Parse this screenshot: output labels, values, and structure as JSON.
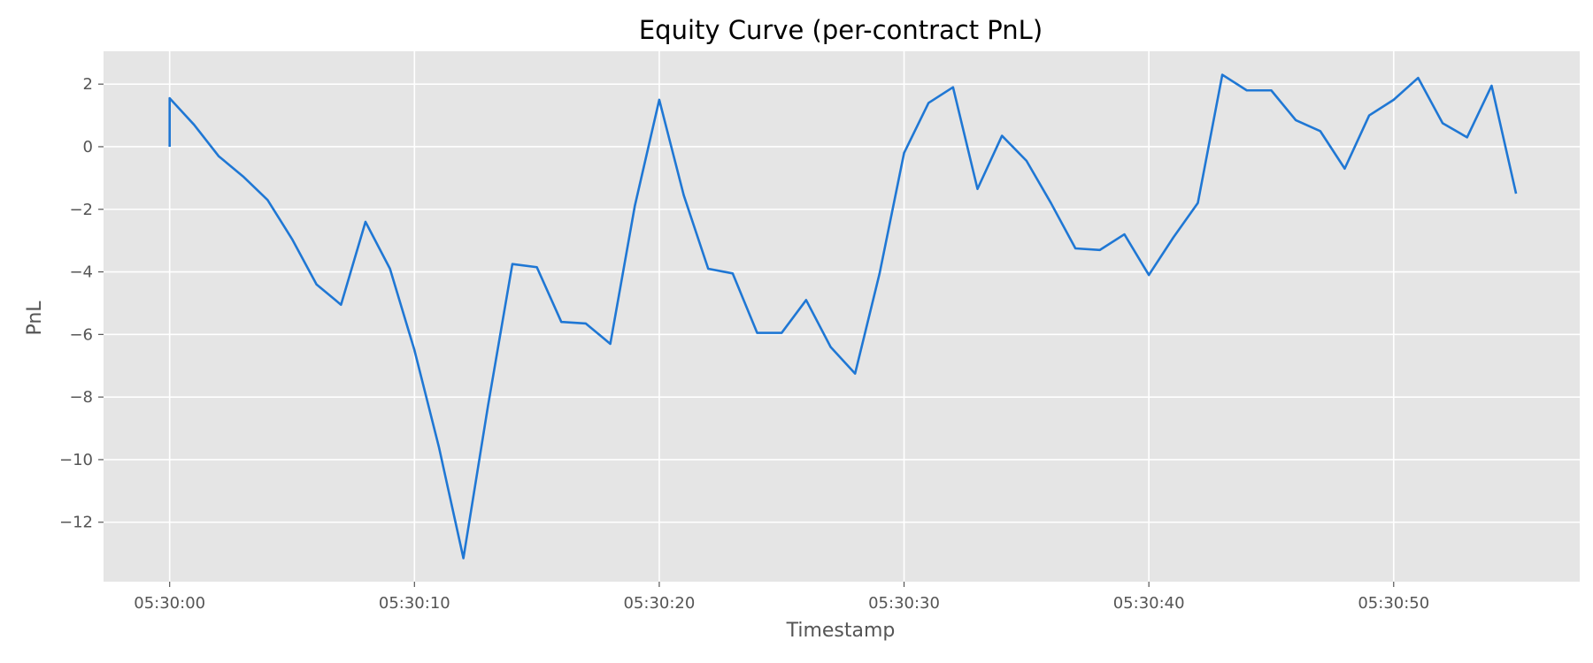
{
  "chart_data": {
    "type": "line",
    "title": "Equity Curve (per-contract PnL)",
    "xlabel": "Timestamp",
    "ylabel": "PnL",
    "x_tick_labels": [
      "05:30:00",
      "05:30:10",
      "05:30:20",
      "05:30:30",
      "05:30:40",
      "05:30:50"
    ],
    "y_ticks": [
      2,
      0,
      -2,
      -4,
      -6,
      -8,
      -10,
      -12
    ],
    "y_tick_labels": [
      "2",
      "0",
      "−2",
      "−4",
      "−6",
      "−8",
      "−10",
      "−12"
    ],
    "xlim": [
      "05:29:57.3",
      "05:30:57.6"
    ],
    "ylim": [
      -13.9,
      3.05
    ],
    "grid": true,
    "series": [
      {
        "color": "#1f77d4",
        "x": [
          "05:30:00",
          "05:30:00",
          "05:30:01",
          "05:30:02",
          "05:30:03",
          "05:30:04",
          "05:30:05",
          "05:30:06",
          "05:30:07",
          "05:30:08",
          "05:30:09",
          "05:30:10",
          "05:30:11",
          "05:30:12",
          "05:30:13",
          "05:30:14",
          "05:30:15",
          "05:30:16",
          "05:30:17",
          "05:30:18",
          "05:30:19",
          "05:30:20",
          "05:30:21",
          "05:30:22",
          "05:30:23",
          "05:30:24",
          "05:30:25",
          "05:30:26",
          "05:30:27",
          "05:30:28",
          "05:30:29",
          "05:30:30",
          "05:30:31",
          "05:30:32",
          "05:30:33",
          "05:30:34",
          "05:30:35",
          "05:30:36",
          "05:30:37",
          "05:30:38",
          "05:30:39",
          "05:30:40",
          "05:30:41",
          "05:30:42",
          "05:30:43",
          "05:30:44",
          "05:30:45",
          "05:30:46",
          "05:30:47",
          "05:30:48",
          "05:30:49",
          "05:30:50",
          "05:30:51",
          "05:30:52",
          "05:30:53",
          "05:30:54",
          "05:30:55"
        ],
        "values": [
          0,
          1.55,
          0.7,
          -0.3,
          -0.95,
          -1.7,
          -2.95,
          -4.4,
          -5.05,
          -2.4,
          -3.9,
          -6.5,
          -9.6,
          -13.15,
          -8.3,
          -3.75,
          -3.85,
          -5.6,
          -5.65,
          -6.3,
          -1.9,
          1.5,
          -1.55,
          -3.9,
          -4.05,
          -5.95,
          -5.95,
          -4.9,
          -6.4,
          -7.25,
          -4.05,
          -0.2,
          1.4,
          1.9,
          -1.35,
          0.35,
          -0.45,
          -1.8,
          -3.25,
          -3.3,
          -2.8,
          -4.1,
          -2.9,
          -1.8,
          2.3,
          1.8,
          1.8,
          0.85,
          0.5,
          -0.7,
          1.0,
          1.5,
          2.2,
          0.75,
          0.3,
          1.95,
          -1.5
        ]
      }
    ]
  }
}
